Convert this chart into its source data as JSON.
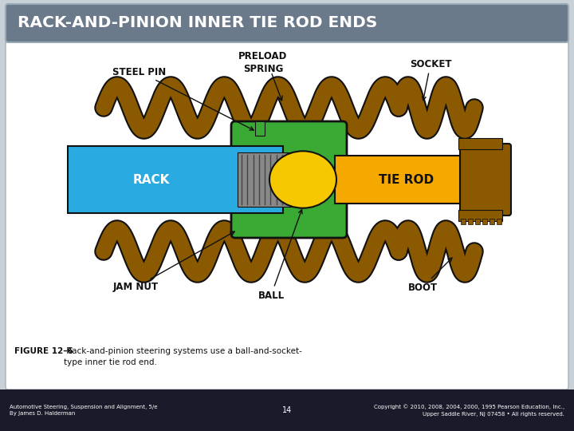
{
  "title": "RACK-AND-PINION INNER TIE ROD ENDS",
  "title_bg": "#6a7a8a",
  "title_color": "#ffffff",
  "slide_bg": "#c8d0d8",
  "content_bg": "#ffffff",
  "figure_caption_bold": "FIGURE 12–6",
  "figure_caption_normal": " Rack-and-pinion steering systems use a ball-and-socket-\ntype inner tie rod end.",
  "footer_left": "Automotive Steering, Suspension and Alignment, 5/e\nBy James D. Halderman",
  "footer_center": "14",
  "footer_right": "Copyright © 2010, 2008, 2004, 2000, 1995 Pearson Education, Inc.,\nUpper Saddle River, NJ 07458 • All rights reserved.",
  "footer_bg": "#1a1a2a",
  "footer_color": "#ffffff",
  "rack_color": "#29abe2",
  "tie_rod_color": "#f5a800",
  "brown_color": "#8B5A00",
  "green_color": "#3aaa35",
  "ball_color": "#f5c800",
  "gray_color": "#888888",
  "outline_color": "#111111",
  "label_color": "#111111",
  "white": "#ffffff"
}
